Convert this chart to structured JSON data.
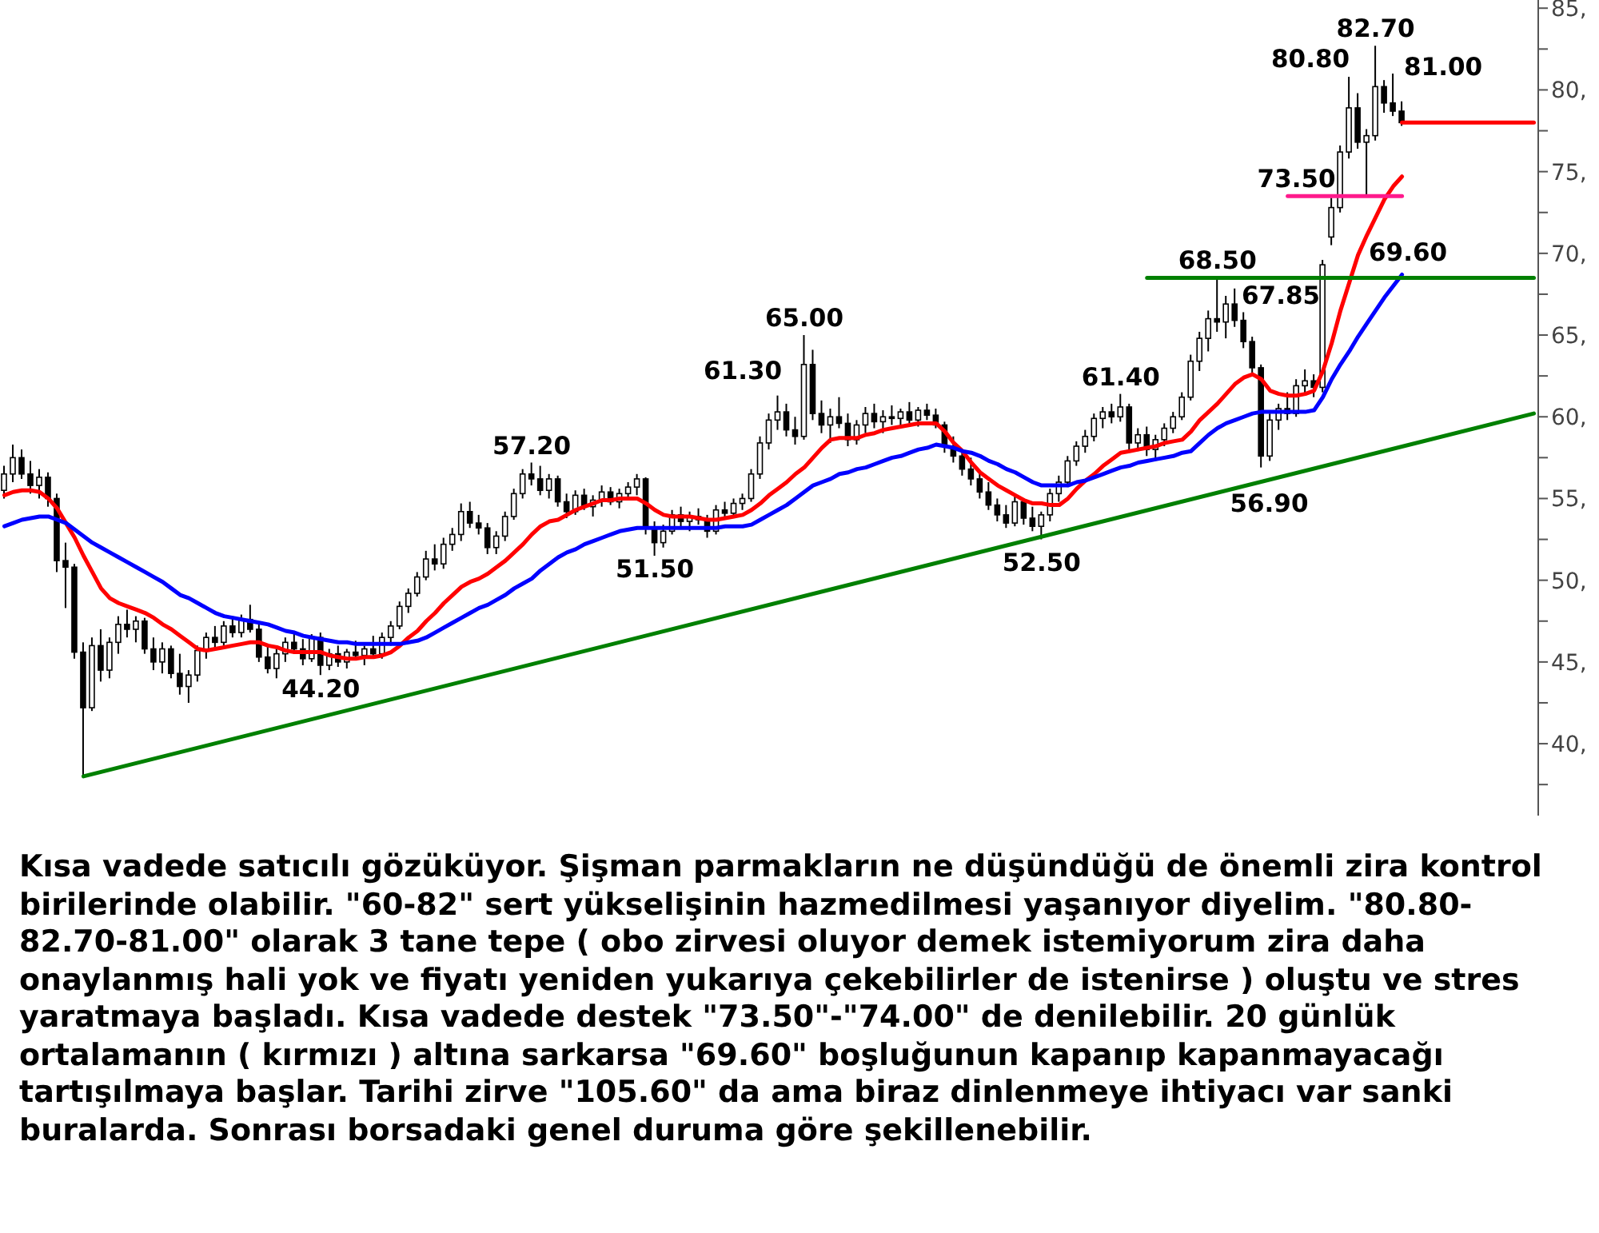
{
  "chart_data": {
    "type": "candlestick",
    "color": "#000000",
    "tick_labels": "y",
    "ylim": [
      35.6,
      85.5
    ],
    "yticks": [
      {
        "value": 37.5,
        "label": null
      },
      {
        "value": 40,
        "label": "40,"
      },
      {
        "value": 42.5,
        "label": null
      },
      {
        "value": 45,
        "label": "45,"
      },
      {
        "value": 47.5,
        "label": null
      },
      {
        "value": 50,
        "label": "50,"
      },
      {
        "value": 52.5,
        "label": null
      },
      {
        "value": 55,
        "label": "55,"
      },
      {
        "value": 57.5,
        "label": null
      },
      {
        "value": 60,
        "label": "60,"
      },
      {
        "value": 62.5,
        "label": null
      },
      {
        "value": 65,
        "label": "65,"
      },
      {
        "value": 67.5,
        "label": null
      },
      {
        "value": 70,
        "label": "70,"
      },
      {
        "value": 72.5,
        "label": null
      },
      {
        "value": 75,
        "label": "75,"
      },
      {
        "value": 77.5,
        "label": null
      },
      {
        "value": 80,
        "label": "80,"
      },
      {
        "value": 82.5,
        "label": null
      },
      {
        "value": 85,
        "label": "85,"
      }
    ],
    "categories": [
      null,
      null,
      null,
      null,
      null,
      null,
      null,
      null,
      null,
      null,
      null,
      null,
      null,
      null,
      null,
      null,
      null,
      null,
      null,
      null,
      null,
      null,
      null,
      null,
      null,
      null,
      null,
      null,
      null,
      null,
      null,
      null,
      null,
      null,
      null,
      null,
      null,
      null,
      null,
      null,
      null,
      null,
      null,
      null,
      null,
      null,
      null,
      null,
      null,
      null,
      null,
      null,
      null,
      null,
      null,
      null,
      null,
      null,
      null,
      null,
      null,
      null,
      null,
      null,
      null,
      null,
      null,
      null,
      null,
      null,
      null,
      null,
      null,
      null,
      null,
      null,
      null,
      null,
      null,
      null,
      null,
      null,
      null,
      null,
      null,
      null,
      null,
      null,
      null,
      null,
      null,
      null,
      null,
      null,
      null,
      null,
      null,
      null,
      null,
      null,
      null,
      null,
      null,
      null,
      null,
      null,
      null,
      null,
      null,
      null,
      null,
      null,
      null,
      null,
      null,
      null,
      null,
      null,
      null,
      null,
      null,
      null,
      null,
      null,
      null,
      null,
      null,
      null,
      null,
      null,
      null,
      null,
      null,
      null,
      null,
      null,
      null,
      null,
      null,
      null,
      null,
      null,
      null,
      null,
      null,
      null,
      null,
      null,
      null,
      null,
      null,
      null,
      null,
      null,
      null,
      null,
      null,
      null,
      null,
      null,
      null,
      null,
      null,
      null,
      null,
      null,
      null,
      null,
      null,
      null,
      null,
      null,
      null,
      null,
      null
    ],
    "ohlc": [
      [
        55.5,
        57.0,
        55.0,
        56.5
      ],
      [
        56.5,
        58.3,
        56.0,
        57.5
      ],
      [
        57.5,
        58.0,
        56.2,
        56.5
      ],
      [
        56.5,
        57.3,
        55.3,
        55.8
      ],
      [
        55.8,
        56.8,
        55.0,
        56.3
      ],
      [
        56.3,
        56.6,
        54.5,
        55.0
      ],
      [
        55.0,
        55.3,
        50.5,
        51.2
      ],
      [
        51.2,
        52.3,
        48.3,
        50.8
      ],
      [
        50.8,
        51.0,
        45.2,
        45.6
      ],
      [
        45.6,
        46.2,
        38.0,
        42.2
      ],
      [
        42.2,
        46.5,
        42.0,
        46.0
      ],
      [
        46.0,
        47.0,
        43.8,
        44.5
      ],
      [
        44.5,
        46.5,
        44.0,
        46.2
      ],
      [
        46.2,
        47.8,
        45.5,
        47.3
      ],
      [
        47.3,
        48.2,
        46.5,
        47.0
      ],
      [
        47.0,
        47.8,
        46.2,
        47.5
      ],
      [
        47.5,
        47.7,
        45.5,
        45.8
      ],
      [
        45.8,
        46.5,
        44.5,
        45.0
      ],
      [
        45.0,
        46.2,
        44.3,
        45.8
      ],
      [
        45.8,
        46.0,
        44.0,
        44.3
      ],
      [
        44.3,
        45.5,
        43.0,
        43.5
      ],
      [
        43.5,
        44.5,
        42.5,
        44.2
      ],
      [
        44.2,
        46.0,
        43.8,
        45.7
      ],
      [
        45.7,
        46.8,
        45.2,
        46.5
      ],
      [
        46.5,
        47.2,
        45.8,
        46.2
      ],
      [
        46.2,
        47.5,
        46.0,
        47.2
      ],
      [
        47.2,
        47.8,
        46.5,
        46.8
      ],
      [
        46.8,
        47.9,
        46.5,
        47.6
      ],
      [
        47.6,
        48.5,
        46.8,
        47.0
      ],
      [
        47.0,
        47.3,
        45.0,
        45.3
      ],
      [
        45.3,
        46.0,
        44.3,
        44.6
      ],
      [
        44.6,
        45.8,
        44.0,
        45.5
      ],
      [
        45.5,
        46.5,
        45.0,
        46.2
      ],
      [
        46.2,
        46.8,
        45.5,
        45.8
      ],
      [
        45.8,
        46.4,
        44.8,
        45.2
      ],
      [
        45.2,
        46.7,
        45.0,
        46.5
      ],
      [
        46.5,
        46.8,
        44.2,
        44.8
      ],
      [
        44.8,
        45.8,
        44.5,
        45.5
      ],
      [
        45.5,
        46.0,
        44.7,
        45.0
      ],
      [
        45.0,
        45.8,
        44.6,
        45.6
      ],
      [
        45.6,
        46.3,
        45.2,
        45.4
      ],
      [
        45.4,
        46.0,
        44.8,
        45.8
      ],
      [
        45.8,
        46.6,
        45.3,
        45.5
      ],
      [
        45.5,
        46.8,
        45.2,
        46.5
      ],
      [
        46.5,
        47.5,
        46.0,
        47.2
      ],
      [
        47.2,
        48.7,
        47.0,
        48.4
      ],
      [
        48.4,
        49.5,
        48.0,
        49.2
      ],
      [
        49.2,
        50.5,
        49.0,
        50.2
      ],
      [
        50.2,
        51.8,
        50.0,
        51.3
      ],
      [
        51.3,
        52.2,
        50.6,
        51.0
      ],
      [
        51.0,
        52.6,
        50.7,
        52.2
      ],
      [
        52.2,
        53.2,
        51.8,
        52.8
      ],
      [
        52.8,
        54.7,
        52.4,
        54.2
      ],
      [
        54.2,
        54.8,
        53.2,
        53.5
      ],
      [
        53.5,
        54.0,
        52.8,
        53.2
      ],
      [
        53.2,
        53.5,
        51.6,
        52.0
      ],
      [
        52.0,
        53.0,
        51.6,
        52.7
      ],
      [
        52.7,
        54.2,
        52.4,
        53.9
      ],
      [
        53.9,
        55.6,
        53.7,
        55.3
      ],
      [
        55.3,
        56.8,
        55.0,
        56.5
      ],
      [
        56.5,
        57.2,
        55.8,
        56.2
      ],
      [
        56.2,
        57.0,
        55.2,
        55.5
      ],
      [
        55.5,
        56.5,
        55.0,
        56.2
      ],
      [
        56.2,
        56.4,
        54.5,
        54.8
      ],
      [
        54.8,
        55.3,
        53.8,
        54.2
      ],
      [
        54.2,
        55.5,
        54.0,
        55.2
      ],
      [
        55.2,
        55.6,
        54.3,
        54.5
      ],
      [
        54.5,
        55.2,
        53.9,
        54.9
      ],
      [
        54.9,
        55.8,
        54.5,
        55.4
      ],
      [
        55.4,
        55.7,
        54.6,
        54.8
      ],
      [
        54.8,
        55.6,
        54.4,
        55.3
      ],
      [
        55.3,
        56.0,
        55.0,
        55.7
      ],
      [
        55.7,
        56.5,
        55.2,
        56.2
      ],
      [
        56.2,
        56.3,
        52.8,
        53.2
      ],
      [
        53.2,
        53.6,
        51.5,
        52.3
      ],
      [
        52.3,
        53.4,
        52.0,
        53.0
      ],
      [
        53.0,
        54.3,
        52.8,
        54.0
      ],
      [
        54.0,
        54.5,
        53.3,
        53.6
      ],
      [
        53.6,
        54.2,
        53.0,
        53.9
      ],
      [
        53.9,
        54.4,
        53.4,
        53.7
      ],
      [
        53.7,
        54.0,
        52.6,
        53.0
      ],
      [
        53.0,
        54.6,
        52.8,
        54.3
      ],
      [
        54.3,
        54.8,
        53.8,
        54.1
      ],
      [
        54.1,
        55.0,
        53.9,
        54.7
      ],
      [
        54.7,
        55.3,
        54.3,
        55.0
      ],
      [
        55.0,
        56.8,
        54.8,
        56.5
      ],
      [
        56.5,
        58.8,
        56.2,
        58.4
      ],
      [
        58.4,
        60.2,
        58.0,
        59.8
      ],
      [
        59.8,
        61.3,
        59.2,
        60.3
      ],
      [
        60.3,
        60.8,
        58.8,
        59.2
      ],
      [
        59.2,
        60.0,
        58.3,
        58.8
      ],
      [
        58.8,
        65.0,
        58.6,
        63.2
      ],
      [
        63.2,
        64.1,
        59.8,
        60.2
      ],
      [
        60.2,
        61.0,
        59.0,
        59.5
      ],
      [
        59.5,
        60.5,
        58.4,
        60.0
      ],
      [
        60.0,
        61.2,
        59.3,
        59.6
      ],
      [
        59.6,
        60.2,
        58.2,
        58.6
      ],
      [
        58.6,
        59.8,
        58.3,
        59.5
      ],
      [
        59.5,
        60.6,
        59.0,
        60.2
      ],
      [
        60.2,
        60.8,
        59.3,
        59.7
      ],
      [
        59.7,
        60.4,
        59.0,
        60.0
      ],
      [
        60.0,
        60.7,
        59.5,
        59.9
      ],
      [
        59.9,
        60.5,
        59.3,
        60.3
      ],
      [
        60.3,
        60.9,
        59.6,
        59.8
      ],
      [
        59.8,
        60.6,
        59.4,
        60.4
      ],
      [
        60.4,
        60.8,
        59.8,
        60.1
      ],
      [
        60.1,
        60.5,
        59.3,
        59.5
      ],
      [
        59.5,
        59.7,
        57.8,
        58.2
      ],
      [
        58.2,
        58.8,
        57.2,
        57.6
      ],
      [
        57.6,
        58.0,
        56.4,
        56.8
      ],
      [
        56.8,
        57.5,
        55.8,
        56.2
      ],
      [
        56.2,
        56.6,
        55.0,
        55.4
      ],
      [
        55.4,
        56.0,
        54.3,
        54.6
      ],
      [
        54.6,
        55.0,
        53.6,
        54.0
      ],
      [
        54.0,
        54.6,
        53.2,
        53.5
      ],
      [
        53.5,
        55.3,
        53.3,
        54.8
      ],
      [
        54.8,
        55.0,
        53.4,
        53.8
      ],
      [
        53.8,
        54.5,
        53.0,
        53.3
      ],
      [
        53.3,
        54.2,
        52.5,
        54.0
      ],
      [
        54.0,
        55.6,
        53.6,
        55.3
      ],
      [
        55.3,
        56.4,
        54.8,
        56.0
      ],
      [
        56.0,
        57.6,
        55.7,
        57.3
      ],
      [
        57.3,
        58.5,
        57.0,
        58.2
      ],
      [
        58.2,
        59.2,
        57.8,
        58.8
      ],
      [
        58.8,
        60.2,
        58.5,
        59.9
      ],
      [
        59.9,
        60.6,
        59.3,
        60.3
      ],
      [
        60.3,
        60.8,
        59.6,
        60.0
      ],
      [
        60.0,
        61.4,
        59.7,
        60.6
      ],
      [
        60.6,
        60.8,
        58.0,
        58.4
      ],
      [
        58.4,
        59.3,
        57.9,
        58.9
      ],
      [
        58.9,
        59.4,
        57.6,
        58.0
      ],
      [
        58.0,
        58.9,
        57.3,
        58.6
      ],
      [
        58.6,
        59.6,
        58.2,
        59.3
      ],
      [
        59.3,
        60.3,
        59.0,
        60.0
      ],
      [
        60.0,
        61.5,
        59.8,
        61.2
      ],
      [
        61.2,
        63.8,
        61.0,
        63.4
      ],
      [
        63.4,
        65.2,
        62.8,
        64.8
      ],
      [
        64.8,
        66.5,
        64.0,
        66.0
      ],
      [
        66.0,
        68.5,
        65.2,
        65.8
      ],
      [
        65.8,
        67.4,
        64.8,
        66.9
      ],
      [
        66.9,
        67.85,
        65.5,
        65.9
      ],
      [
        65.9,
        66.4,
        64.2,
        64.6
      ],
      [
        64.6,
        64.9,
        62.6,
        63.0
      ],
      [
        63.0,
        63.2,
        56.9,
        57.6
      ],
      [
        57.6,
        60.2,
        57.3,
        59.8
      ],
      [
        59.8,
        60.8,
        59.2,
        60.5
      ],
      [
        60.5,
        61.5,
        59.8,
        60.2
      ],
      [
        60.2,
        62.3,
        60.0,
        61.9
      ],
      [
        61.9,
        62.9,
        61.3,
        62.2
      ],
      [
        62.2,
        62.6,
        61.2,
        61.8
      ],
      [
        61.8,
        69.6,
        61.5,
        69.3
      ],
      [
        71.0,
        73.4,
        70.5,
        72.8
      ],
      [
        72.8,
        76.6,
        72.5,
        76.2
      ],
      [
        76.2,
        80.8,
        75.8,
        78.9
      ],
      [
        78.9,
        79.8,
        76.4,
        76.8
      ],
      [
        76.8,
        77.6,
        73.6,
        77.2
      ],
      [
        77.2,
        82.7,
        76.9,
        80.2
      ],
      [
        80.2,
        80.6,
        78.6,
        79.2
      ],
      [
        79.2,
        81.0,
        78.4,
        78.7
      ],
      [
        78.7,
        79.3,
        77.8,
        78.0
      ],
      null,
      null,
      null,
      null,
      null,
      null,
      null,
      null,
      null,
      null,
      null,
      null,
      null,
      null,
      null
    ],
    "series": [
      {
        "type": "line",
        "color": "#ff0000",
        "values": [
          55.2,
          55.4,
          55.5,
          55.5,
          55.4,
          55.0,
          54.4,
          53.5,
          52.6,
          51.5,
          50.5,
          49.5,
          48.9,
          48.6,
          48.4,
          48.2,
          48.0,
          47.7,
          47.3,
          47.0,
          46.6,
          46.2,
          45.8,
          45.7,
          45.8,
          45.9,
          46.0,
          46.1,
          46.2,
          46.2,
          46.0,
          45.9,
          45.7,
          45.6,
          45.6,
          45.6,
          45.6,
          45.4,
          45.3,
          45.2,
          45.2,
          45.3,
          45.3,
          45.4,
          45.6,
          46.0,
          46.5,
          46.9,
          47.5,
          48.0,
          48.6,
          49.1,
          49.6,
          49.9,
          50.1,
          50.4,
          50.8,
          51.2,
          51.7,
          52.2,
          52.8,
          53.3,
          53.6,
          53.7,
          54.0,
          54.3,
          54.5,
          54.7,
          54.9,
          54.9,
          55.0,
          55.0,
          55.0,
          54.7,
          54.3,
          54.0,
          53.9,
          53.9,
          53.9,
          53.8,
          53.7,
          53.7,
          53.8,
          53.9,
          54.0,
          54.3,
          54.7,
          55.2,
          55.6,
          56.0,
          56.5,
          56.9,
          57.5,
          58.1,
          58.6,
          58.7,
          58.7,
          58.7,
          58.9,
          59.0,
          59.2,
          59.3,
          59.4,
          59.5,
          59.6,
          59.6,
          59.6,
          59.1,
          58.4,
          57.9,
          57.2,
          56.6,
          56.2,
          55.8,
          55.5,
          55.2,
          54.9,
          54.7,
          54.7,
          54.6,
          54.6,
          55.0,
          55.6,
          56.1,
          56.5,
          57.0,
          57.4,
          57.8,
          57.9,
          58.0,
          58.1,
          58.2,
          58.4,
          58.5,
          58.6,
          59.1,
          59.8,
          60.3,
          60.8,
          61.4,
          62.0,
          62.4,
          62.6,
          62.3,
          61.6,
          61.4,
          61.3,
          61.3,
          61.4,
          61.6,
          62.8,
          64.5,
          66.5,
          68.2,
          69.9,
          71.1,
          72.2,
          73.3,
          74.1,
          74.7,
          null,
          null,
          null,
          null,
          null,
          null,
          null,
          null,
          null,
          null,
          null,
          null,
          null,
          null,
          null
        ]
      },
      {
        "type": "line",
        "color": "#0000ff",
        "values": [
          53.3,
          53.5,
          53.7,
          53.8,
          53.9,
          53.9,
          53.7,
          53.5,
          53.1,
          52.7,
          52.3,
          52.0,
          51.7,
          51.4,
          51.1,
          50.8,
          50.5,
          50.2,
          49.9,
          49.5,
          49.1,
          48.9,
          48.6,
          48.3,
          48.0,
          47.8,
          47.7,
          47.6,
          47.5,
          47.4,
          47.3,
          47.1,
          46.9,
          46.8,
          46.6,
          46.5,
          46.4,
          46.3,
          46.2,
          46.2,
          46.1,
          46.1,
          46.1,
          46.1,
          46.1,
          46.1,
          46.2,
          46.3,
          46.5,
          46.8,
          47.1,
          47.4,
          47.7,
          48.0,
          48.3,
          48.5,
          48.8,
          49.1,
          49.5,
          49.8,
          50.1,
          50.6,
          51.0,
          51.4,
          51.7,
          51.9,
          52.2,
          52.4,
          52.6,
          52.8,
          53.0,
          53.1,
          53.2,
          53.2,
          53.2,
          53.2,
          53.2,
          53.2,
          53.2,
          53.2,
          53.2,
          53.2,
          53.3,
          53.3,
          53.3,
          53.4,
          53.7,
          54.0,
          54.3,
          54.6,
          55.0,
          55.4,
          55.8,
          56.0,
          56.2,
          56.5,
          56.6,
          56.8,
          56.9,
          57.1,
          57.3,
          57.5,
          57.6,
          57.8,
          58.0,
          58.1,
          58.3,
          58.2,
          58.1,
          57.9,
          57.8,
          57.6,
          57.3,
          57.1,
          56.8,
          56.6,
          56.3,
          56.0,
          55.8,
          55.8,
          55.8,
          55.8,
          56.0,
          56.1,
          56.3,
          56.5,
          56.7,
          56.9,
          57.0,
          57.2,
          57.3,
          57.4,
          57.5,
          57.6,
          57.8,
          57.9,
          58.4,
          58.9,
          59.3,
          59.6,
          59.8,
          60.0,
          60.2,
          60.3,
          60.3,
          60.3,
          60.3,
          60.3,
          60.3,
          60.4,
          61.2,
          62.3,
          63.2,
          64.0,
          64.9,
          65.7,
          66.5,
          67.3,
          68.0,
          68.7,
          null,
          null,
          null,
          null,
          null,
          null,
          null,
          null,
          null,
          null,
          null,
          null,
          null,
          null,
          null
        ]
      },
      {
        "type": "line",
        "color": "#008000",
        "values": [
          null,
          null,
          null,
          null,
          null,
          null,
          null,
          null,
          null,
          38.0,
          null,
          null,
          null,
          null,
          null,
          null,
          null,
          null,
          null,
          null,
          null,
          null,
          null,
          null,
          null,
          null,
          null,
          null,
          null,
          null,
          null,
          null,
          null,
          null,
          null,
          null,
          null,
          null,
          null,
          null,
          null,
          null,
          null,
          null,
          null,
          null,
          null,
          null,
          null,
          null,
          null,
          null,
          null,
          null,
          null,
          null,
          null,
          null,
          null,
          null,
          null,
          null,
          null,
          null,
          null,
          null,
          null,
          null,
          null,
          null,
          null,
          null,
          null,
          null,
          null,
          null,
          null,
          null,
          null,
          null,
          null,
          null,
          null,
          null,
          null,
          null,
          null,
          null,
          null,
          null,
          null,
          null,
          null,
          null,
          null,
          null,
          null,
          null,
          null,
          null,
          null,
          null,
          null,
          null,
          null,
          null,
          null,
          null,
          null,
          null,
          null,
          null,
          null,
          null,
          null,
          null,
          null,
          null,
          null,
          null,
          null,
          null,
          null,
          null,
          null,
          null,
          null,
          null,
          null,
          null,
          null,
          null,
          null,
          null,
          null,
          null,
          null,
          null,
          null,
          null,
          null,
          null,
          null,
          null,
          null,
          null,
          null,
          null,
          null,
          null,
          null,
          null,
          null,
          null,
          null,
          null,
          null,
          null,
          null,
          null,
          null,
          null,
          null,
          null,
          null,
          null,
          null,
          null,
          null,
          null,
          null,
          null,
          null,
          null,
          60.2
        ]
      },
      {
        "type": "line",
        "color": "#008000",
        "values": [
          null,
          null,
          null,
          null,
          null,
          null,
          null,
          null,
          null,
          null,
          null,
          null,
          null,
          null,
          null,
          null,
          null,
          null,
          null,
          null,
          null,
          null,
          null,
          null,
          null,
          null,
          null,
          null,
          null,
          null,
          null,
          null,
          null,
          null,
          null,
          null,
          null,
          null,
          null,
          null,
          null,
          null,
          null,
          null,
          null,
          null,
          null,
          null,
          null,
          null,
          null,
          null,
          null,
          null,
          null,
          null,
          null,
          null,
          null,
          null,
          null,
          null,
          null,
          null,
          null,
          null,
          null,
          null,
          null,
          null,
          null,
          null,
          null,
          null,
          null,
          null,
          null,
          null,
          null,
          null,
          null,
          null,
          null,
          null,
          null,
          null,
          null,
          null,
          null,
          null,
          null,
          null,
          null,
          null,
          null,
          null,
          null,
          null,
          null,
          null,
          null,
          null,
          null,
          null,
          null,
          null,
          null,
          null,
          null,
          null,
          null,
          null,
          null,
          null,
          null,
          null,
          null,
          null,
          null,
          null,
          null,
          null,
          null,
          null,
          null,
          null,
          null,
          null,
          null,
          null,
          68.5,
          68.5,
          68.5,
          68.5,
          68.5,
          68.5,
          68.5,
          68.5,
          68.5,
          68.5,
          68.5,
          68.5,
          68.5,
          68.5,
          68.5,
          68.5,
          68.5,
          68.5,
          68.5,
          68.5,
          68.5,
          68.5,
          68.5,
          68.5,
          68.5,
          68.5,
          68.5,
          68.5,
          68.5,
          68.5,
          68.5,
          68.5,
          68.5,
          68.5,
          68.5,
          68.5,
          68.5,
          68.5,
          68.5,
          68.5,
          68.5,
          68.5,
          68.5,
          68.5,
          68.5
        ]
      },
      {
        "type": "line",
        "color": "#ff1a8c",
        "values": [
          null,
          null,
          null,
          null,
          null,
          null,
          null,
          null,
          null,
          null,
          null,
          null,
          null,
          null,
          null,
          null,
          null,
          null,
          null,
          null,
          null,
          null,
          null,
          null,
          null,
          null,
          null,
          null,
          null,
          null,
          null,
          null,
          null,
          null,
          null,
          null,
          null,
          null,
          null,
          null,
          null,
          null,
          null,
          null,
          null,
          null,
          null,
          null,
          null,
          null,
          null,
          null,
          null,
          null,
          null,
          null,
          null,
          null,
          null,
          null,
          null,
          null,
          null,
          null,
          null,
          null,
          null,
          null,
          null,
          null,
          null,
          null,
          null,
          null,
          null,
          null,
          null,
          null,
          null,
          null,
          null,
          null,
          null,
          null,
          null,
          null,
          null,
          null,
          null,
          null,
          null,
          null,
          null,
          null,
          null,
          null,
          null,
          null,
          null,
          null,
          null,
          null,
          null,
          null,
          null,
          null,
          null,
          null,
          null,
          null,
          null,
          null,
          null,
          null,
          null,
          null,
          null,
          null,
          null,
          null,
          null,
          null,
          null,
          null,
          null,
          null,
          null,
          null,
          null,
          null,
          null,
          null,
          null,
          null,
          null,
          null,
          null,
          null,
          null,
          null,
          null,
          null,
          null,
          null,
          null,
          null,
          73.5,
          73.5,
          73.5,
          73.5,
          73.5,
          73.5,
          73.5,
          73.5,
          73.5,
          73.5,
          73.5,
          73.5,
          73.5,
          73.5,
          null,
          null,
          null,
          null,
          null,
          null,
          null,
          null,
          null,
          null,
          null,
          null,
          null,
          null,
          null
        ]
      },
      {
        "type": "line",
        "color": "#ff0000",
        "values": [
          null,
          null,
          null,
          null,
          null,
          null,
          null,
          null,
          null,
          null,
          null,
          null,
          null,
          null,
          null,
          null,
          null,
          null,
          null,
          null,
          null,
          null,
          null,
          null,
          null,
          null,
          null,
          null,
          null,
          null,
          null,
          null,
          null,
          null,
          null,
          null,
          null,
          null,
          null,
          null,
          null,
          null,
          null,
          null,
          null,
          null,
          null,
          null,
          null,
          null,
          null,
          null,
          null,
          null,
          null,
          null,
          null,
          null,
          null,
          null,
          null,
          null,
          null,
          null,
          null,
          null,
          null,
          null,
          null,
          null,
          null,
          null,
          null,
          null,
          null,
          null,
          null,
          null,
          null,
          null,
          null,
          null,
          null,
          null,
          null,
          null,
          null,
          null,
          null,
          null,
          null,
          null,
          null,
          null,
          null,
          null,
          null,
          null,
          null,
          null,
          null,
          null,
          null,
          null,
          null,
          null,
          null,
          null,
          null,
          null,
          null,
          null,
          null,
          null,
          null,
          null,
          null,
          null,
          null,
          null,
          null,
          null,
          null,
          null,
          null,
          null,
          null,
          null,
          null,
          null,
          null,
          null,
          null,
          null,
          null,
          null,
          null,
          null,
          null,
          null,
          null,
          null,
          null,
          null,
          null,
          null,
          null,
          null,
          null,
          null,
          null,
          null,
          null,
          null,
          null,
          null,
          null,
          null,
          null,
          78.0,
          78.0,
          78.0,
          78.0,
          78.0,
          78.0,
          78.0,
          78.0,
          78.0,
          78.0,
          78.0,
          78.0,
          78.0,
          78.0,
          78.0,
          78.0
        ]
      }
    ],
    "annotations": [
      {
        "text": "44.20",
        "y": 44.2
      },
      {
        "text": "57.20",
        "y": 57.2
      },
      {
        "text": "51.50",
        "y": 51.5
      },
      {
        "text": "65.00",
        "y": 65.0
      },
      {
        "text": "52.50",
        "y": 52.5
      },
      {
        "text": "61.40",
        "y": 61.4
      },
      {
        "text": "68.50",
        "y": 68.5
      },
      {
        "text": "56.90",
        "y": 56.9
      },
      {
        "text": "82.70",
        "y": 82.7
      },
      {
        "text": "73.50",
        "y": 73.5
      },
      "61.30",
      "67.85",
      "69.60",
      "80.80",
      "81.00",
      "Kısa vadede satıcılı gözüküyor. Şişman parmakların ne düşündüğü de önemli zira kontrol birilerinde olabilir. \"60-82\" sert yükselişinin hazmedilmesi yaşanıyor diyelim. \"80.80-82.70-81.00\" olarak 3 tane tepe ( obo zirvesi oluyor demek istemiyorum zira daha onaylanmış hali yok ve fiyatı yeniden yukarıya çekebilirler de istenirse ) oluştu ve stres yaratmaya başladı. Kısa vadede destek \"73.50\"-\"74.00\" de denilebilir. 20 günlük ortalamanın ( kırmızı ) altına sarkarsa \"69.60\" boşluğunun kapanıp kapanmayacağı tartışılmaya başlar. Tarihi zirve \"105.60\" da ama biraz dinlenmeye ihtiyacı var sanki buralarda. Sonrası borsadaki genel duruma göre şekillenebilir."
    ]
  }
}
